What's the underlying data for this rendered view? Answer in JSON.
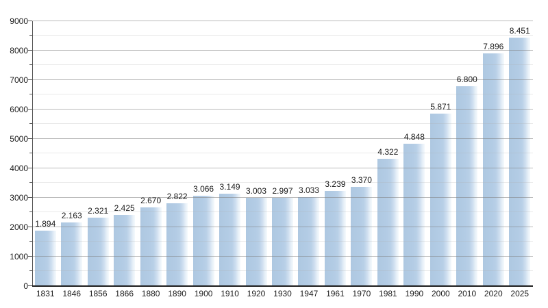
{
  "chart_data": {
    "type": "bar",
    "title": "",
    "xlabel": "",
    "ylabel": "",
    "categories": [
      "1831",
      "1846",
      "1856",
      "1866",
      "1880",
      "1890",
      "1900",
      "1910",
      "1920",
      "1930",
      "1947",
      "1961",
      "1970",
      "1981",
      "1990",
      "2000",
      "2010",
      "2020",
      "2025"
    ],
    "values": [
      1894,
      2163,
      2321,
      2425,
      2670,
      2822,
      3066,
      3149,
      3003,
      2997,
      3033,
      3239,
      3370,
      4322,
      4848,
      5871,
      6800,
      7896,
      8451
    ],
    "value_labels": [
      "1.894",
      "2.163",
      "2.321",
      "2.425",
      "2.670",
      "2.822",
      "3.066",
      "3.149",
      "3.003",
      "2.997",
      "3.033",
      "3.239",
      "3.370",
      "4.322",
      "4.848",
      "5.871",
      "6.800",
      "7.896",
      "8.451"
    ],
    "ylim": [
      0,
      9000
    ],
    "ytick_step": 1000,
    "minor_tick_step": 500,
    "y_tick_labels": [
      "0",
      "1000",
      "2000",
      "3000",
      "4000",
      "5000",
      "6000",
      "7000",
      "8000",
      "9000"
    ],
    "grid": true,
    "legend": false,
    "colors": {
      "bar_fill": "#b3cce5",
      "bar_fade": "#f4f9fd",
      "grid_major": "#808080",
      "grid_minor": "#dcdcdc",
      "axis": "#1c1c1c",
      "text": "#1a1a1a",
      "background": "#ffffff"
    }
  }
}
